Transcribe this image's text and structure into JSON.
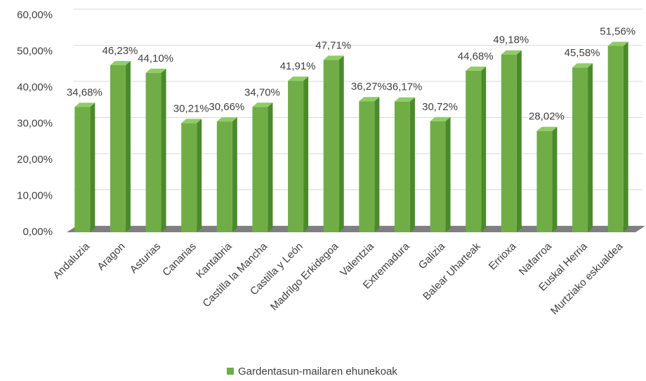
{
  "chart_data": {
    "type": "bar3d",
    "categories": [
      "Andaluzia",
      "Aragon",
      "Asturias",
      "Canarias",
      "Kantabria",
      "Castilla la Mancha",
      "Castilla y León",
      "Madrilgo Erkidegoa",
      "Valentzia",
      "Extremadura",
      "Galizia",
      "Balear Uharteak",
      "Errioxa",
      "Nafarroa",
      "Euskal Herria",
      "Murtziako eskualdea"
    ],
    "series": [
      {
        "name": "Gardentasun-mailaren ehunekoak",
        "color": "#70ad47",
        "values": [
          34.68,
          46.23,
          44.1,
          30.21,
          30.66,
          34.7,
          41.91,
          47.71,
          36.27,
          36.17,
          30.72,
          44.68,
          49.18,
          28.02,
          45.58,
          51.56
        ],
        "value_labels": [
          "34,68%",
          "46,23%",
          "44,10%",
          "30,21%",
          "30,66%",
          "34,70%",
          "41,91%",
          "47,71%",
          "36,27%",
          "36,17%",
          "30,72%",
          "44,68%",
          "49,18%",
          "28,02%",
          "45,58%",
          "51,56%"
        ]
      }
    ],
    "ylim": [
      0,
      60
    ],
    "yticks": [
      {
        "value": 0,
        "label": "0,00%"
      },
      {
        "value": 10,
        "label": "10,00%"
      },
      {
        "value": 20,
        "label": "20,00%"
      },
      {
        "value": 30,
        "label": "30,00%"
      },
      {
        "value": 40,
        "label": "40,00%"
      },
      {
        "value": 50,
        "label": "50,00%"
      },
      {
        "value": 60,
        "label": "60,00%"
      }
    ],
    "grid": true,
    "legend": "bottom"
  }
}
